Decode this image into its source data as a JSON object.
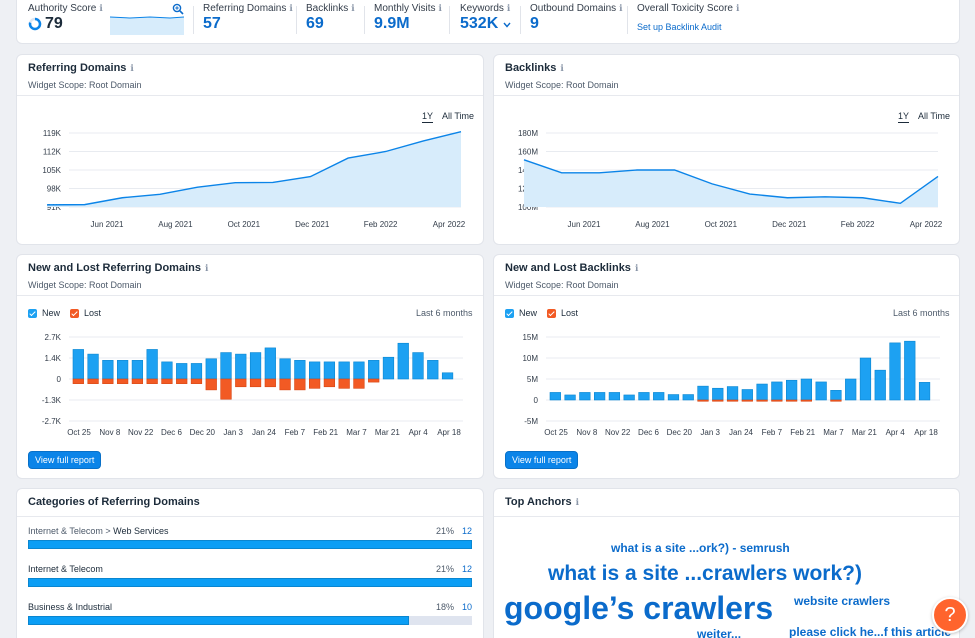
{
  "metrics": [
    {
      "label": "Authority Score",
      "value": "79"
    },
    {
      "label": "Referring Domains",
      "value": "57"
    },
    {
      "label": "Backlinks",
      "value": "69"
    },
    {
      "label": "Monthly Visits",
      "value": "9.9M"
    },
    {
      "label": "Keywords",
      "value": "532K"
    },
    {
      "label": "Outbound Domains",
      "value": "9"
    },
    {
      "label": "Overall Toxicity Score",
      "link": "Set up Backlink Audit"
    }
  ],
  "info_glyph": "ℹ",
  "ref_domains": {
    "title": "Referring Domains",
    "scope": "Widget Scope: Root Domain",
    "period_1y": "1Y",
    "period_all": "All Time"
  },
  "backlinks": {
    "title": "Backlinks",
    "scope": "Widget Scope: Root Domain",
    "period_1y": "1Y",
    "period_all": "All Time"
  },
  "new_lost_rd": {
    "title": "New and Lost Referring Domains",
    "scope": "Widget Scope: Root Domain",
    "legend_new": "New",
    "legend_lost": "Lost",
    "range": "Last 6 months",
    "button": "View full report"
  },
  "new_lost_bl": {
    "title": "New and Lost Backlinks",
    "scope": "Widget Scope: Root Domain",
    "legend_new": "New",
    "legend_lost": "Lost",
    "range": "Last 6 months",
    "button": "View full report"
  },
  "categories": {
    "title": "Categories of Referring Domains",
    "items": [
      {
        "parent": "Internet & Telecom > ",
        "name": "Web Services",
        "percent_label": "21%",
        "percent": 21,
        "count": "12"
      },
      {
        "parent": "",
        "name": "Internet & Telecom",
        "percent_label": "21%",
        "percent": 21,
        "count": "12"
      },
      {
        "parent": "",
        "name": "Business & Industrial",
        "percent_label": "18%",
        "percent": 18,
        "count": "10"
      }
    ]
  },
  "top_anchors": {
    "title": "Top Anchors",
    "words": [
      "what is a site ...ork?) - semrush",
      "what is a site ...crawlers work?)",
      "google’s crawlers",
      "website crawlers",
      "weiter...",
      "please click he...f this article"
    ]
  },
  "help_glyph": "?",
  "colors": {
    "accent": "#0b84e8",
    "new": "#1da1f2",
    "lost": "#f25a24",
    "area": "#d7ecfb"
  },
  "chart_data": [
    {
      "type": "area",
      "x_ticks": [
        "Jun 2021",
        "Aug 2021",
        "Oct 2021",
        "Dec 2021",
        "Feb 2022",
        "Apr 2022"
      ],
      "y_ticks": [
        "91K",
        "98K",
        "105K",
        "112K",
        "119K"
      ],
      "ylim": [
        91,
        119
      ],
      "values": [
        91.8,
        91.9,
        94.5,
        95.8,
        98.5,
        100.2,
        100.3,
        102.5,
        109.5,
        112.0,
        116.0,
        119.5
      ]
    },
    {
      "type": "area",
      "x_ticks": [
        "Jun 2021",
        "Aug 2021",
        "Oct 2021",
        "Dec 2021",
        "Feb 2022",
        "Apr 2022"
      ],
      "y_ticks": [
        "100M",
        "120M",
        "140M",
        "160M",
        "180M"
      ],
      "ylim": [
        100,
        180
      ],
      "values": [
        151,
        137,
        137,
        140,
        140,
        125,
        114,
        110,
        111,
        110,
        104,
        133
      ]
    },
    {
      "type": "bar",
      "x_ticks": [
        "Oct 25",
        "Nov 8",
        "Nov 22",
        "Dec 6",
        "Dec 20",
        "Jan 3",
        "Jan 24",
        "Feb 7",
        "Feb 21",
        "Mar 7",
        "Mar 21",
        "Apr 4",
        "Apr 18"
      ],
      "y_ticks": [
        "2.7K",
        "1.4K",
        "0",
        "-1.3K",
        "-2.7K"
      ],
      "ylim": [
        -2.7,
        2.7
      ],
      "series": [
        {
          "name": "New",
          "values": [
            1.9,
            1.6,
            1.2,
            1.2,
            1.2,
            1.9,
            1.1,
            1.0,
            1.0,
            1.3,
            1.7,
            1.6,
            1.7,
            2.0,
            1.3,
            1.2,
            1.1,
            1.1,
            1.1,
            1.1,
            1.2,
            1.4,
            2.3,
            1.7,
            1.2,
            0.4
          ]
        },
        {
          "name": "Lost",
          "values": [
            -0.3,
            -0.3,
            -0.3,
            -0.3,
            -0.3,
            -0.3,
            -0.3,
            -0.3,
            -0.3,
            -0.7,
            -1.3,
            -0.5,
            -0.5,
            -0.5,
            -0.7,
            -0.7,
            -0.6,
            -0.5,
            -0.6,
            -0.6,
            -0.2,
            0,
            0,
            0,
            0,
            0
          ]
        }
      ]
    },
    {
      "type": "bar",
      "x_ticks": [
        "Oct 25",
        "Nov 8",
        "Nov 22",
        "Dec 6",
        "Dec 20",
        "Jan 3",
        "Jan 24",
        "Feb 7",
        "Feb 21",
        "Mar 7",
        "Mar 21",
        "Apr 4",
        "Apr 18"
      ],
      "y_ticks": [
        "15M",
        "10M",
        "5M",
        "0",
        "-5M"
      ],
      "ylim": [
        -5,
        15
      ],
      "series": [
        {
          "name": "New",
          "values": [
            1.8,
            1.2,
            1.8,
            1.8,
            1.8,
            1.2,
            1.8,
            1.8,
            1.3,
            1.3,
            3.3,
            2.8,
            3.2,
            2.5,
            3.8,
            4.3,
            4.7,
            5.0,
            4.3,
            2.3,
            5.0,
            10.0,
            7.1,
            13.6,
            14.0,
            4.2
          ]
        },
        {
          "name": "Lost",
          "values": [
            0,
            0,
            0,
            0,
            0,
            0,
            0,
            0,
            0,
            0,
            -0.3,
            -0.3,
            -0.3,
            -0.3,
            -0.3,
            -0.3,
            -0.3,
            -0.3,
            0,
            -0.3,
            0,
            0,
            0,
            0,
            0,
            0
          ]
        }
      ]
    }
  ]
}
